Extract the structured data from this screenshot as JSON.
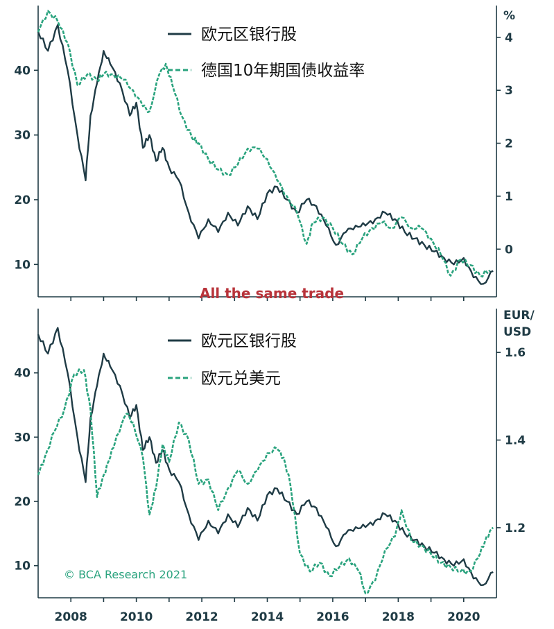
{
  "chart_data": [
    {
      "type": "line",
      "panel": "top",
      "x_axis": {
        "tick_labels": [
          "2008",
          "2010",
          "2012",
          "2014",
          "2016",
          "2018",
          "2020"
        ],
        "range": [
          2007.0,
          2021.0
        ]
      },
      "y_left": {
        "tick_labels": [
          "10",
          "20",
          "30",
          "40"
        ],
        "range": [
          5,
          50
        ]
      },
      "y_right": {
        "tick_labels": [
          "0",
          "1",
          "2",
          "3",
          "4"
        ],
        "range": [
          -0.9,
          4.6
        ],
        "unit": "%"
      },
      "annotation": "All the same trade",
      "legend_placement": "top-center",
      "series": [
        {
          "name": "欧元区银行股",
          "axis": "left",
          "style": "solid",
          "color": "#1f3b45",
          "x": [
            2007.0,
            2007.3,
            2007.6,
            2007.9,
            2008.2,
            2008.45,
            2008.6,
            2008.8,
            2009.0,
            2009.2,
            2009.5,
            2009.8,
            2010.0,
            2010.2,
            2010.4,
            2010.6,
            2010.8,
            2011.0,
            2011.3,
            2011.6,
            2011.9,
            2012.2,
            2012.5,
            2012.8,
            2013.1,
            2013.4,
            2013.7,
            2014.0,
            2014.3,
            2014.6,
            2014.9,
            2015.2,
            2015.5,
            2015.8,
            2016.1,
            2016.4,
            2016.7,
            2017.0,
            2017.3,
            2017.6,
            2017.9,
            2018.2,
            2018.5,
            2018.8,
            2019.1,
            2019.4,
            2019.7,
            2020.0,
            2020.3,
            2020.6,
            2020.9
          ],
          "values": [
            46,
            43,
            47,
            40,
            30,
            23,
            33,
            38,
            43,
            41,
            38,
            33,
            35,
            28,
            30,
            26,
            28,
            25,
            23,
            18,
            14,
            17,
            15,
            18,
            16,
            19,
            17,
            21,
            22,
            20,
            18,
            20,
            19,
            16,
            13,
            15,
            16,
            16,
            17,
            18,
            17,
            15,
            14,
            13,
            12,
            11,
            10,
            11,
            8,
            7,
            9
          ]
        },
        {
          "name": "德国10年期国债收益率",
          "axis": "right",
          "style": "dashed",
          "color": "#2aa37e",
          "x": [
            2007.0,
            2007.3,
            2007.6,
            2007.9,
            2008.2,
            2008.5,
            2008.8,
            2009.0,
            2009.3,
            2009.6,
            2009.9,
            2010.2,
            2010.4,
            2010.7,
            2010.9,
            2011.1,
            2011.4,
            2011.7,
            2011.9,
            2012.2,
            2012.5,
            2012.8,
            2013.1,
            2013.4,
            2013.7,
            2014.0,
            2014.3,
            2014.6,
            2014.9,
            2015.2,
            2015.4,
            2015.7,
            2016.0,
            2016.3,
            2016.6,
            2016.9,
            2017.2,
            2017.5,
            2017.8,
            2018.1,
            2018.4,
            2018.7,
            2019.0,
            2019.3,
            2019.6,
            2019.9,
            2020.2,
            2020.5,
            2020.8
          ],
          "values": [
            4.1,
            4.5,
            4.3,
            3.9,
            3.1,
            3.3,
            3.2,
            3.3,
            3.3,
            3.2,
            3.0,
            2.7,
            2.6,
            3.3,
            3.5,
            3.1,
            2.5,
            2.1,
            2.0,
            1.7,
            1.5,
            1.4,
            1.6,
            1.9,
            1.9,
            1.7,
            1.3,
            1.0,
            0.7,
            0.1,
            0.5,
            0.6,
            0.4,
            0.1,
            -0.1,
            0.2,
            0.4,
            0.5,
            0.4,
            0.6,
            0.4,
            0.4,
            0.2,
            -0.1,
            -0.5,
            -0.2,
            -0.3,
            -0.5,
            -0.4
          ]
        }
      ]
    },
    {
      "type": "line",
      "panel": "bottom",
      "x_axis": {
        "tick_labels": [
          "2008",
          "2010",
          "2012",
          "2014",
          "2016",
          "2018",
          "2020"
        ],
        "range": [
          2007.0,
          2021.0
        ]
      },
      "y_left": {
        "tick_labels": [
          "10",
          "20",
          "30",
          "40"
        ],
        "range": [
          5,
          50
        ]
      },
      "y_right": {
        "tick_labels": [
          "1.2",
          "1.4",
          "1.6"
        ],
        "range": [
          1.04,
          1.7
        ],
        "unit": "EUR/\nUSD"
      },
      "legend_placement": "top-center",
      "credit": "© BCA Research 2021",
      "series": [
        {
          "name": "欧元区银行股",
          "axis": "left",
          "style": "solid",
          "color": "#1f3b45",
          "x": [
            2007.0,
            2007.3,
            2007.6,
            2007.9,
            2008.2,
            2008.45,
            2008.6,
            2008.8,
            2009.0,
            2009.2,
            2009.5,
            2009.8,
            2010.0,
            2010.2,
            2010.4,
            2010.6,
            2010.8,
            2011.0,
            2011.3,
            2011.6,
            2011.9,
            2012.2,
            2012.5,
            2012.8,
            2013.1,
            2013.4,
            2013.7,
            2014.0,
            2014.3,
            2014.6,
            2014.9,
            2015.2,
            2015.5,
            2015.8,
            2016.1,
            2016.4,
            2016.7,
            2017.0,
            2017.3,
            2017.6,
            2017.9,
            2018.2,
            2018.5,
            2018.8,
            2019.1,
            2019.4,
            2019.7,
            2020.0,
            2020.3,
            2020.6,
            2020.9
          ],
          "values": [
            46,
            43,
            47,
            40,
            30,
            23,
            33,
            38,
            43,
            41,
            38,
            33,
            35,
            28,
            30,
            26,
            28,
            25,
            23,
            18,
            14,
            17,
            15,
            18,
            16,
            19,
            17,
            21,
            22,
            20,
            18,
            20,
            19,
            16,
            13,
            15,
            16,
            16,
            17,
            18,
            17,
            15,
            14,
            13,
            12,
            11,
            10,
            11,
            8,
            7,
            9
          ]
        },
        {
          "name": "欧元兑美元",
          "axis": "right",
          "style": "dashed",
          "color": "#2aa37e",
          "x": [
            2007.0,
            2007.2,
            2007.5,
            2007.8,
            2008.1,
            2008.4,
            2008.6,
            2008.8,
            2009.0,
            2009.2,
            2009.4,
            2009.7,
            2009.9,
            2010.2,
            2010.4,
            2010.6,
            2010.8,
            2011.0,
            2011.3,
            2011.6,
            2011.9,
            2012.2,
            2012.5,
            2012.8,
            2013.1,
            2013.4,
            2013.7,
            2014.0,
            2014.3,
            2014.5,
            2014.7,
            2015.0,
            2015.3,
            2015.6,
            2015.9,
            2016.2,
            2016.5,
            2016.8,
            2017.0,
            2017.3,
            2017.6,
            2017.9,
            2018.1,
            2018.4,
            2018.7,
            2019.0,
            2019.3,
            2019.6,
            2019.9,
            2020.2,
            2020.5,
            2020.7,
            2020.9
          ],
          "values": [
            1.32,
            1.36,
            1.42,
            1.47,
            1.55,
            1.56,
            1.47,
            1.27,
            1.32,
            1.36,
            1.41,
            1.46,
            1.44,
            1.36,
            1.23,
            1.29,
            1.39,
            1.35,
            1.44,
            1.4,
            1.3,
            1.31,
            1.24,
            1.29,
            1.33,
            1.3,
            1.33,
            1.37,
            1.38,
            1.36,
            1.3,
            1.14,
            1.1,
            1.12,
            1.09,
            1.11,
            1.13,
            1.1,
            1.05,
            1.08,
            1.15,
            1.18,
            1.24,
            1.17,
            1.16,
            1.14,
            1.12,
            1.11,
            1.1,
            1.1,
            1.14,
            1.18,
            1.2
          ]
        }
      ]
    }
  ]
}
